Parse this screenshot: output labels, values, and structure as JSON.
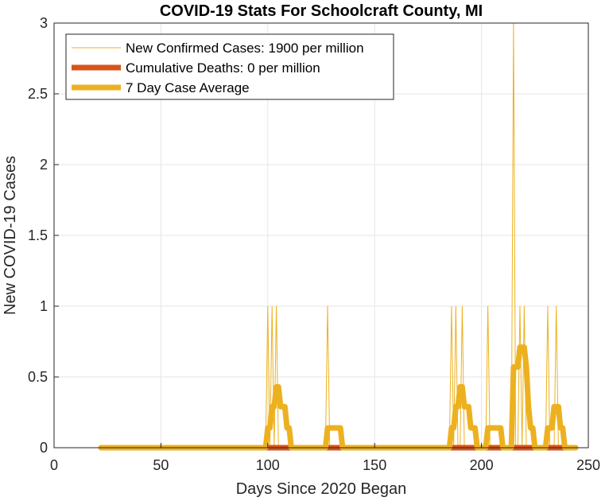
{
  "chart_data": {
    "type": "line",
    "title": "COVID-19 Stats For Schoolcraft County, MI",
    "xlabel": "Days Since 2020 Began",
    "ylabel": "New COVID-19 Cases",
    "xlim": [
      0,
      250
    ],
    "ylim": [
      0,
      3
    ],
    "xticks": [
      0,
      50,
      100,
      150,
      200,
      250
    ],
    "yticks": [
      0,
      0.5,
      1,
      1.5,
      2,
      2.5,
      3
    ],
    "xtick_labels": [
      "0",
      "50",
      "100",
      "150",
      "200",
      "250"
    ],
    "ytick_labels": [
      "0",
      "0.5",
      "1",
      "1.5",
      "2",
      "2.5",
      "3"
    ],
    "grid": true,
    "legend_position": "top-left",
    "x_start": 22,
    "x_end": 244,
    "series": [
      {
        "name": "New Confirmed Cases: 1900 per million",
        "color": "#EDB120",
        "style": "thin",
        "spikes": [
          {
            "x": 100,
            "y": 1
          },
          {
            "x": 102,
            "y": 1
          },
          {
            "x": 104,
            "y": 1
          },
          {
            "x": 128,
            "y": 1
          },
          {
            "x": 186,
            "y": 1
          },
          {
            "x": 188,
            "y": 1
          },
          {
            "x": 191,
            "y": 1
          },
          {
            "x": 203,
            "y": 1
          },
          {
            "x": 215,
            "y": 3
          },
          {
            "x": 218,
            "y": 1
          },
          {
            "x": 220,
            "y": 1
          },
          {
            "x": 231,
            "y": 1
          },
          {
            "x": 235,
            "y": 1
          }
        ]
      },
      {
        "name": "Cumulative Deaths: 0 per million",
        "color": "#D95319",
        "style": "thick",
        "points": [
          {
            "x": 22,
            "y": 0
          },
          {
            "x": 244,
            "y": 0
          }
        ]
      },
      {
        "name": "7 Day Case Average",
        "color": "#EDB120",
        "style": "thick",
        "points": [
          {
            "x": 22,
            "y": 0
          },
          {
            "x": 99,
            "y": 0
          },
          {
            "x": 100,
            "y": 0.14
          },
          {
            "x": 101,
            "y": 0.14
          },
          {
            "x": 102,
            "y": 0.29
          },
          {
            "x": 103,
            "y": 0.29
          },
          {
            "x": 104,
            "y": 0.43
          },
          {
            "x": 105,
            "y": 0.43
          },
          {
            "x": 106,
            "y": 0.29
          },
          {
            "x": 107,
            "y": 0.29
          },
          {
            "x": 108,
            "y": 0.29
          },
          {
            "x": 109,
            "y": 0.14
          },
          {
            "x": 110,
            "y": 0.14
          },
          {
            "x": 111,
            "y": 0
          },
          {
            "x": 127,
            "y": 0
          },
          {
            "x": 128,
            "y": 0.14
          },
          {
            "x": 134,
            "y": 0.14
          },
          {
            "x": 135,
            "y": 0
          },
          {
            "x": 185,
            "y": 0
          },
          {
            "x": 186,
            "y": 0.14
          },
          {
            "x": 187,
            "y": 0.14
          },
          {
            "x": 188,
            "y": 0.29
          },
          {
            "x": 189,
            "y": 0.29
          },
          {
            "x": 190,
            "y": 0.43
          },
          {
            "x": 191,
            "y": 0.43
          },
          {
            "x": 192,
            "y": 0.29
          },
          {
            "x": 193,
            "y": 0.29
          },
          {
            "x": 194,
            "y": 0.29
          },
          {
            "x": 195,
            "y": 0.14
          },
          {
            "x": 197,
            "y": 0.14
          },
          {
            "x": 198,
            "y": 0
          },
          {
            "x": 202,
            "y": 0
          },
          {
            "x": 203,
            "y": 0.14
          },
          {
            "x": 209,
            "y": 0.14
          },
          {
            "x": 210,
            "y": 0
          },
          {
            "x": 214,
            "y": 0
          },
          {
            "x": 215,
            "y": 0.57
          },
          {
            "x": 217,
            "y": 0.57
          },
          {
            "x": 218,
            "y": 0.71
          },
          {
            "x": 220,
            "y": 0.71
          },
          {
            "x": 221,
            "y": 0.57
          },
          {
            "x": 222,
            "y": 0.29
          },
          {
            "x": 223,
            "y": 0.14
          },
          {
            "x": 224,
            "y": 0.14
          },
          {
            "x": 225,
            "y": 0
          },
          {
            "x": 230,
            "y": 0
          },
          {
            "x": 231,
            "y": 0.14
          },
          {
            "x": 233,
            "y": 0.14
          },
          {
            "x": 234,
            "y": 0.29
          },
          {
            "x": 236,
            "y": 0.29
          },
          {
            "x": 237,
            "y": 0.14
          },
          {
            "x": 238,
            "y": 0.14
          },
          {
            "x": 239,
            "y": 0
          },
          {
            "x": 244,
            "y": 0
          }
        ]
      }
    ]
  }
}
